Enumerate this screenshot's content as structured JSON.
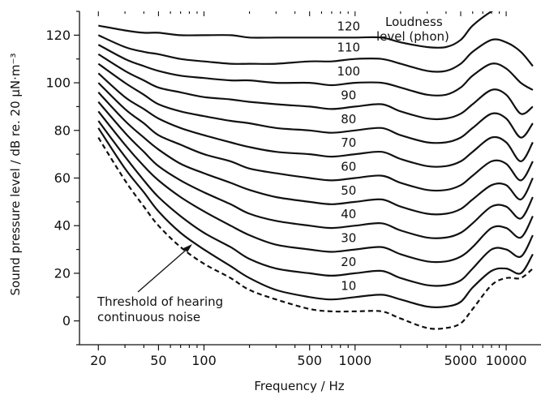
{
  "chart_data": {
    "type": "line",
    "title": "",
    "xlabel": "Frequency / Hz",
    "ylabel": "Sound pressure level / dB re. 20 µN·m⁻³",
    "x_scale": "log",
    "xlim": [
      15,
      17000
    ],
    "ylim": [
      -10,
      130
    ],
    "x_ticks": [
      20,
      50,
      100,
      500,
      1000,
      5000,
      10000
    ],
    "x_tick_labels": [
      "20",
      "50",
      "100",
      "500",
      "1000",
      "5000",
      "10000"
    ],
    "y_ticks": [
      0,
      20,
      40,
      60,
      80,
      100,
      120
    ],
    "y_tick_labels": [
      "0",
      "20",
      "40",
      "60",
      "80",
      "100",
      "120"
    ],
    "grid": false,
    "legend": "none",
    "annotations": {
      "loudness_title_line1": "Loudness",
      "loudness_title_line2": "level (phon)",
      "threshold_line1": "Threshold of hearing",
      "threshold_line2": "continuous noise"
    },
    "curve_x": [
      20,
      30,
      40,
      50,
      70,
      100,
      150,
      200,
      300,
      500,
      700,
      1000,
      1500,
      2000,
      3000,
      4000,
      5000,
      6000,
      8000,
      10000,
      12500,
      15000
    ],
    "series": [
      {
        "name": "Threshold of hearing continuous noise",
        "dashed": true,
        "values": [
          77,
          59,
          48,
          40,
          31,
          24,
          18,
          13,
          9,
          5,
          4,
          4,
          4,
          1,
          -3,
          -3,
          -1,
          5,
          15,
          18,
          18,
          22
        ]
      },
      {
        "name": "10",
        "label": "10",
        "values": [
          81,
          64,
          54,
          46,
          37,
          30,
          23,
          18,
          13,
          10,
          9,
          10,
          11,
          9,
          6,
          6,
          8,
          14,
          21,
          22,
          20,
          28
        ]
      },
      {
        "name": "20",
        "label": "20",
        "values": [
          84,
          69,
          59,
          52,
          44,
          37,
          31,
          26,
          22,
          20,
          19,
          20,
          21,
          18,
          15,
          15,
          17,
          22,
          30,
          30,
          27,
          36
        ]
      },
      {
        "name": "30",
        "label": "30",
        "values": [
          88,
          74,
          65,
          59,
          52,
          46,
          40,
          36,
          32,
          30,
          29,
          30,
          31,
          28,
          25,
          25,
          27,
          31,
          39,
          39,
          35,
          44
        ]
      },
      {
        "name": "40",
        "label": "40",
        "values": [
          92,
          79,
          71,
          65,
          59,
          54,
          49,
          45,
          42,
          40,
          39,
          40,
          41,
          38,
          35,
          35,
          37,
          41,
          48,
          48,
          43,
          52
        ]
      },
      {
        "name": "50",
        "label": "50",
        "values": [
          96,
          84,
          77,
          72,
          66,
          62,
          58,
          55,
          52,
          50,
          49,
          50,
          51,
          48,
          45,
          45,
          47,
          51,
          57,
          57,
          51,
          60
        ]
      },
      {
        "name": "60",
        "label": "60",
        "values": [
          100,
          89,
          83,
          78,
          74,
          70,
          67,
          64,
          62,
          60,
          59,
          60,
          61,
          58,
          55,
          55,
          57,
          61,
          67,
          66,
          59,
          67
        ]
      },
      {
        "name": "70",
        "label": "70",
        "values": [
          104,
          94,
          89,
          85,
          81,
          78,
          75,
          73,
          71,
          70,
          69,
          70,
          71,
          68,
          65,
          65,
          67,
          71,
          77,
          75,
          67,
          75
        ]
      },
      {
        "name": "80",
        "label": "80",
        "values": [
          108,
          100,
          95,
          91,
          88,
          86,
          84,
          83,
          81,
          80,
          79,
          80,
          81,
          78,
          75,
          75,
          77,
          81,
          87,
          85,
          77,
          83
        ]
      },
      {
        "name": "90",
        "label": "90",
        "values": [
          112,
          105,
          101,
          98,
          96,
          94,
          93,
          92,
          91,
          90,
          89,
          90,
          91,
          88,
          85,
          85,
          87,
          91,
          97,
          95,
          87,
          90
        ]
      },
      {
        "name": "100",
        "label": "100",
        "values": [
          116,
          110,
          107,
          105,
          103,
          102,
          101,
          101,
          100,
          100,
          99,
          100,
          100,
          98,
          95,
          95,
          98,
          103,
          108,
          106,
          100,
          97
        ]
      },
      {
        "name": "110",
        "label": "110",
        "values": [
          120,
          115,
          113,
          112,
          110,
          109,
          108,
          108,
          108,
          109,
          109,
          110,
          110,
          108,
          105,
          105,
          108,
          113,
          118,
          117,
          113,
          107
        ]
      },
      {
        "name": "120",
        "label": "120",
        "values": [
          124,
          122,
          121,
          121,
          120,
          120,
          120,
          119,
          119,
          119,
          119,
          119,
          119,
          117,
          115,
          115,
          118,
          124,
          130,
          133,
          133,
          133
        ]
      }
    ]
  }
}
